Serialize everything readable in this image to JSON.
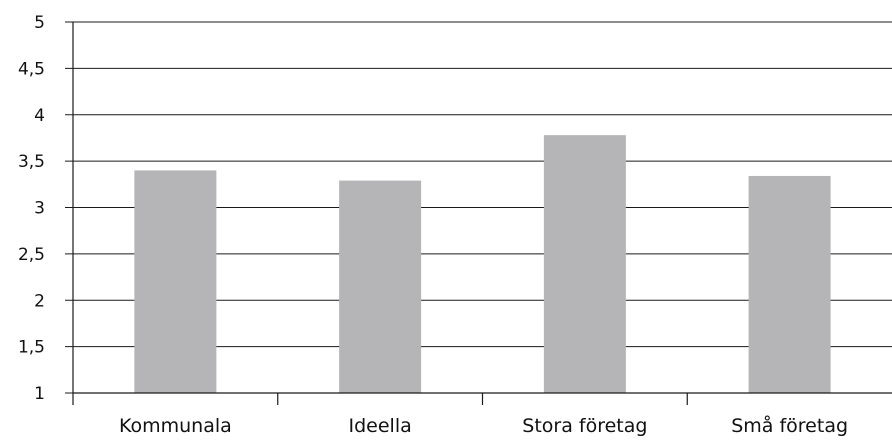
{
  "chart_data": {
    "type": "bar",
    "title": "",
    "xlabel": "",
    "ylabel": "",
    "categories": [
      "Kommunala",
      "Ideella",
      "Stora företag",
      "Små företag"
    ],
    "values": [
      3.4,
      3.29,
      3.78,
      3.34
    ],
    "ylim": [
      1,
      5
    ],
    "yticks": [
      1,
      1.5,
      2,
      2.5,
      3,
      3.5,
      4,
      4.5,
      5
    ],
    "ytick_labels": [
      "1",
      "1,5",
      "2",
      "2,5",
      "3",
      "3,5",
      "4",
      "4,5",
      "5"
    ],
    "grid": true,
    "legend": "none",
    "colors": {
      "bar": "#b5b5b7",
      "grid": "#1a1a1a",
      "axis": "#1a1a1a",
      "text": "#111111"
    }
  }
}
